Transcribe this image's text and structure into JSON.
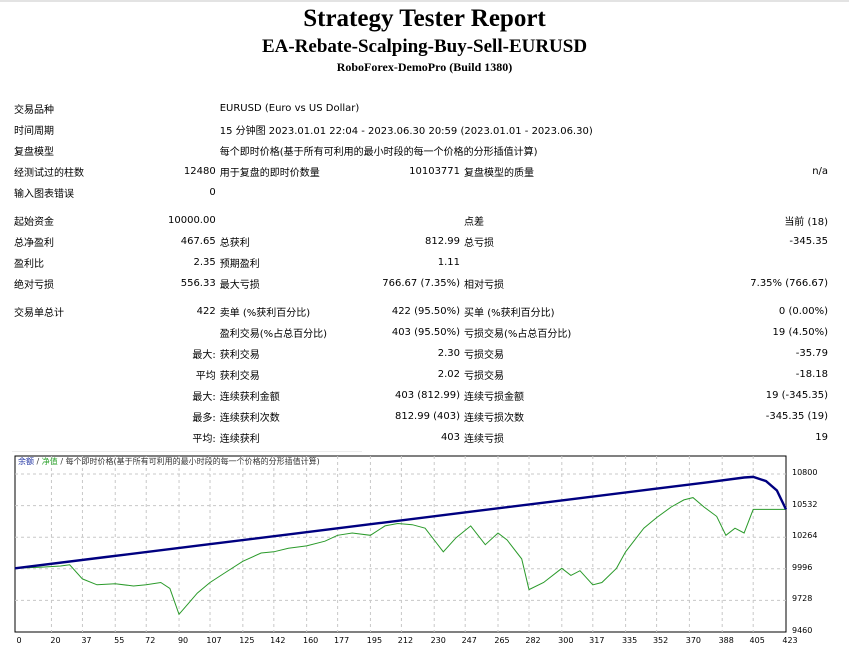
{
  "header": {
    "title": "Strategy Tester Report",
    "ea_name": "EA-Rebate-Scalping-Buy-Sell-EURUSD",
    "server": "RoboForex-DemoPro (Build 1380)"
  },
  "info": {
    "symbol_label": "交易品种",
    "symbol_value": "EURUSD (Euro vs US Dollar)",
    "period_label": "时间周期",
    "period_value": "15 分钟图 2023.01.01 22:04 - 2023.06.30 20:59 (2023.01.01 - 2023.06.30)",
    "model_label": "复盘模型",
    "model_value": "每个即时价格(基于所有可利用的最小时段的每一个价格的分形插值计算)",
    "bars_label": "经测试过的柱数",
    "bars_value": "12480",
    "ticks_label": "用于复盘的即时价数量",
    "ticks_value": "10103771",
    "quality_label": "复盘模型的质量",
    "quality_value": "n/a",
    "errors_label": "输入图表错误",
    "errors_value": "0"
  },
  "results": {
    "deposit_label": "起始资金",
    "deposit_value": "10000.00",
    "spread_label": "点差",
    "spread_value": "当前 (18)",
    "net_profit_label": "总净盈利",
    "net_profit_value": "467.65",
    "gross_profit_label": "总获利",
    "gross_profit_value": "812.99",
    "gross_loss_label": "总亏损",
    "gross_loss_value": "-345.35",
    "profit_factor_label": "盈利比",
    "profit_factor_value": "2.35",
    "expected_payoff_label": "预期盈利",
    "expected_payoff_value": "1.11",
    "abs_dd_label": "绝对亏损",
    "abs_dd_value": "556.33",
    "max_dd_label": "最大亏损",
    "max_dd_value": "766.67 (7.35%)",
    "rel_dd_label": "相对亏损",
    "rel_dd_value": "7.35% (766.67)"
  },
  "trades": {
    "total_label": "交易单总计",
    "total_value": "422",
    "short_label": "卖单 (%获利百分比)",
    "short_value": "422 (95.50%)",
    "long_label": "买单 (%获利百分比)",
    "long_value": "0 (0.00%)",
    "win_label": "盈利交易(%占总百分比)",
    "win_value": "403 (95.50%)",
    "loss_label": "亏损交易(%占总百分比)",
    "loss_value": "19 (4.50%)",
    "rows": [
      {
        "prefix": "最大:",
        "win_label": "获利交易",
        "win_value": "2.30",
        "loss_label": "亏损交易",
        "loss_value": "-35.79"
      },
      {
        "prefix": "平均",
        "win_label": "获利交易",
        "win_value": "2.02",
        "loss_label": "亏损交易",
        "loss_value": "-18.18"
      },
      {
        "prefix": "最大:",
        "win_label": "连续获利金额",
        "win_value": "403 (812.99)",
        "loss_label": "连续亏损金额",
        "loss_value": "19 (-345.35)"
      },
      {
        "prefix": "最多:",
        "win_label": "连续获利次数",
        "win_value": "812.99 (403)",
        "loss_label": "连续亏损次数",
        "loss_value": "-345.35 (19)"
      },
      {
        "prefix": "平均:",
        "win_label": "连续获利",
        "win_value": "403",
        "loss_label": "连续亏损",
        "loss_value": "19"
      }
    ]
  },
  "chart_legend": {
    "balance": "余额",
    "sep1": " / ",
    "equity": "净值",
    "sep2": " / ",
    "model": "每个即时价格(基于所有可利用的最小时段的每一个价格的分形插值计算)"
  },
  "colors": {
    "balance": "#000080",
    "equity": "#2a9a2a",
    "grid": "#c8c8c8"
  },
  "chart_data": {
    "type": "line",
    "title": "余额 / 净值",
    "xlabel": "",
    "ylabel": "",
    "x_ticks": [
      0,
      20,
      37,
      55,
      72,
      90,
      107,
      125,
      142,
      160,
      177,
      195,
      212,
      230,
      247,
      265,
      282,
      300,
      317,
      335,
      352,
      370,
      388,
      405,
      423
    ],
    "y_ticks": [
      9460,
      9728,
      9996,
      10264,
      10532,
      10800
    ],
    "ylim": [
      9460,
      10880
    ],
    "xlim": [
      0,
      423
    ],
    "grid": true,
    "legend_position": "top-left",
    "series": [
      {
        "name": "余额",
        "x": [
          0,
          50,
          100,
          150,
          200,
          250,
          300,
          350,
          380,
          400,
          405,
          412,
          418,
          423
        ],
        "values": [
          10000,
          10096,
          10192,
          10288,
          10384,
          10480,
          10576,
          10672,
          10730,
          10770,
          10775,
          10740,
          10660,
          10500
        ]
      },
      {
        "name": "净值",
        "x": [
          0,
          15,
          25,
          30,
          37,
          45,
          55,
          65,
          72,
          80,
          85,
          90,
          95,
          100,
          107,
          115,
          125,
          135,
          142,
          150,
          160,
          170,
          177,
          185,
          195,
          203,
          210,
          218,
          225,
          230,
          235,
          242,
          250,
          258,
          265,
          270,
          278,
          282,
          290,
          300,
          305,
          310,
          317,
          322,
          330,
          335,
          345,
          352,
          360,
          367,
          372,
          378,
          385,
          390,
          395,
          400,
          405,
          423
        ],
        "values": [
          10000,
          10010,
          10020,
          10030,
          9910,
          9860,
          9870,
          9850,
          9860,
          9880,
          9830,
          9610,
          9700,
          9790,
          9880,
          9960,
          10060,
          10130,
          10140,
          10170,
          10190,
          10230,
          10280,
          10300,
          10280,
          10360,
          10380,
          10370,
          10340,
          10240,
          10140,
          10260,
          10360,
          10200,
          10300,
          10240,
          10080,
          9820,
          9880,
          10000,
          9940,
          9980,
          9860,
          9880,
          10000,
          10140,
          10340,
          10430,
          10520,
          10580,
          10600,
          10520,
          10440,
          10280,
          10340,
          10300,
          10500,
          10500
        ]
      }
    ]
  }
}
